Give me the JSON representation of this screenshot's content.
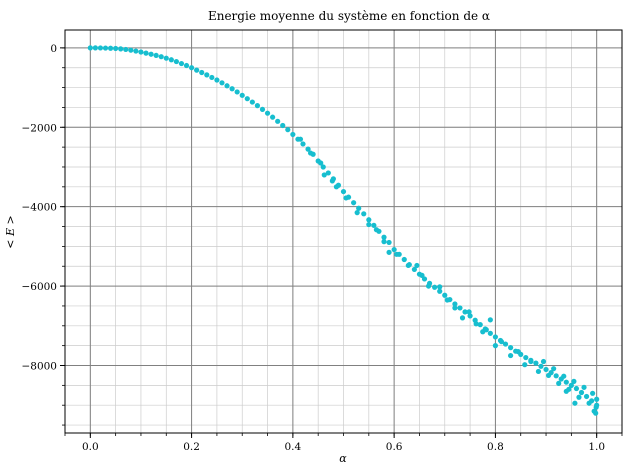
{
  "chart_data": {
    "type": "scatter",
    "title": "Energie moyenne du système en fonction de α",
    "xlabel": "α",
    "ylabel": "< E >",
    "xlim": [
      -0.05,
      1.05
    ],
    "ylim": [
      -9700,
      450
    ],
    "x_ticks": [
      0.0,
      0.2,
      0.4,
      0.6,
      0.8,
      1.0
    ],
    "x_tick_labels": [
      "0.0",
      "0.2",
      "0.4",
      "0.6",
      "0.8",
      "1.0"
    ],
    "y_ticks": [
      0,
      -2000,
      -4000,
      -6000,
      -8000
    ],
    "y_tick_labels": [
      "0",
      "−2000",
      "−4000",
      "−6000",
      "−8000"
    ],
    "grid": "major and minor",
    "marker_color": "#17becf",
    "points": [
      [
        0.0,
        0
      ],
      [
        0.01,
        0
      ],
      [
        0.02,
        -2
      ],
      [
        0.03,
        -5
      ],
      [
        0.04,
        -9
      ],
      [
        0.05,
        -15
      ],
      [
        0.06,
        -25
      ],
      [
        0.07,
        -40
      ],
      [
        0.08,
        -58
      ],
      [
        0.09,
        -80
      ],
      [
        0.1,
        -105
      ],
      [
        0.11,
        -132
      ],
      [
        0.12,
        -160
      ],
      [
        0.13,
        -190
      ],
      [
        0.14,
        -222
      ],
      [
        0.15,
        -260
      ],
      [
        0.16,
        -300
      ],
      [
        0.17,
        -345
      ],
      [
        0.18,
        -395
      ],
      [
        0.19,
        -445
      ],
      [
        0.2,
        -500
      ],
      [
        0.21,
        -560
      ],
      [
        0.22,
        -620
      ],
      [
        0.23,
        -680
      ],
      [
        0.24,
        -745
      ],
      [
        0.25,
        -810
      ],
      [
        0.26,
        -880
      ],
      [
        0.27,
        -955
      ],
      [
        0.28,
        -1030
      ],
      [
        0.29,
        -1110
      ],
      [
        0.3,
        -1195
      ],
      [
        0.31,
        -1280
      ],
      [
        0.32,
        -1365
      ],
      [
        0.33,
        -1455
      ],
      [
        0.34,
        -1550
      ],
      [
        0.35,
        -1645
      ],
      [
        0.36,
        -1745
      ],
      [
        0.37,
        -1850
      ],
      [
        0.38,
        -1955
      ],
      [
        0.39,
        -2060
      ],
      [
        0.4,
        -2180
      ],
      [
        0.41,
        -2300
      ],
      [
        0.42,
        -2420
      ],
      [
        0.43,
        -2550
      ],
      [
        0.44,
        -2680
      ],
      [
        0.45,
        -2850
      ],
      [
        0.46,
        -3000
      ],
      [
        0.47,
        -3150
      ],
      [
        0.48,
        -3300
      ],
      [
        0.49,
        -3460
      ],
      [
        0.5,
        -3620
      ],
      [
        0.51,
        -3760
      ],
      [
        0.52,
        -3900
      ],
      [
        0.53,
        -4040
      ],
      [
        0.54,
        -4180
      ],
      [
        0.55,
        -4330
      ],
      [
        0.56,
        -4470
      ],
      [
        0.57,
        -4620
      ],
      [
        0.58,
        -4770
      ],
      [
        0.59,
        -4900
      ],
      [
        0.6,
        -5080
      ],
      [
        0.61,
        -5200
      ],
      [
        0.62,
        -5330
      ],
      [
        0.63,
        -5460
      ],
      [
        0.64,
        -5580
      ],
      [
        0.65,
        -5700
      ],
      [
        0.66,
        -5820
      ],
      [
        0.67,
        -5930
      ],
      [
        0.68,
        -6030
      ],
      [
        0.69,
        -6130
      ],
      [
        0.7,
        -6230
      ],
      [
        0.71,
        -6340
      ],
      [
        0.72,
        -6450
      ],
      [
        0.73,
        -6550
      ],
      [
        0.74,
        -6650
      ],
      [
        0.75,
        -6750
      ],
      [
        0.76,
        -6860
      ],
      [
        0.77,
        -6970
      ],
      [
        0.78,
        -7080
      ],
      [
        0.79,
        -7190
      ],
      [
        0.8,
        -7280
      ],
      [
        0.81,
        -7370
      ],
      [
        0.82,
        -7460
      ],
      [
        0.83,
        -7550
      ],
      [
        0.84,
        -7640
      ],
      [
        0.85,
        -7720
      ],
      [
        0.86,
        -7800
      ],
      [
        0.87,
        -7870
      ],
      [
        0.88,
        -7940
      ],
      [
        0.89,
        -8020
      ],
      [
        0.9,
        -8100
      ],
      [
        0.91,
        -8180
      ],
      [
        0.92,
        -8260
      ],
      [
        0.93,
        -8340
      ],
      [
        0.94,
        -8420
      ],
      [
        0.95,
        -8500
      ],
      [
        0.96,
        -8580
      ],
      [
        0.97,
        -8680
      ],
      [
        0.98,
        -8780
      ],
      [
        0.99,
        -8890
      ],
      [
        1.0,
        -9000
      ],
      [
        0.415,
        -2300
      ],
      [
        0.435,
        -2650
      ],
      [
        0.455,
        -2900
      ],
      [
        0.462,
        -3200
      ],
      [
        0.478,
        -3350
      ],
      [
        0.486,
        -3500
      ],
      [
        0.505,
        -3780
      ],
      [
        0.527,
        -4150
      ],
      [
        0.55,
        -4450
      ],
      [
        0.565,
        -4580
      ],
      [
        0.58,
        -4880
      ],
      [
        0.59,
        -5150
      ],
      [
        0.605,
        -5200
      ],
      [
        0.628,
        -5480
      ],
      [
        0.645,
        -5480
      ],
      [
        0.655,
        -5730
      ],
      [
        0.668,
        -6000
      ],
      [
        0.69,
        -6020
      ],
      [
        0.705,
        -6350
      ],
      [
        0.72,
        -6550
      ],
      [
        0.735,
        -6800
      ],
      [
        0.748,
        -6650
      ],
      [
        0.762,
        -6950
      ],
      [
        0.775,
        -7150
      ],
      [
        0.782,
        -7100
      ],
      [
        0.79,
        -6850
      ],
      [
        0.8,
        -7500
      ],
      [
        0.812,
        -7400
      ],
      [
        0.83,
        -7750
      ],
      [
        0.845,
        -7650
      ],
      [
        0.858,
        -7980
      ],
      [
        0.87,
        -7900
      ],
      [
        0.885,
        -8150
      ],
      [
        0.895,
        -7900
      ],
      [
        0.905,
        -8250
      ],
      [
        0.915,
        -8080
      ],
      [
        0.925,
        -8450
      ],
      [
        0.935,
        -8270
      ],
      [
        0.945,
        -8600
      ],
      [
        0.955,
        -8400
      ],
      [
        0.965,
        -8800
      ],
      [
        0.975,
        -8550
      ],
      [
        0.985,
        -8950
      ],
      [
        0.992,
        -8700
      ],
      [
        0.995,
        -9150
      ],
      [
        0.998,
        -9200
      ],
      [
        1.0,
        -8850
      ],
      [
        0.999,
        -9050
      ],
      [
        0.94,
        -8650
      ],
      [
        0.957,
        -8950
      ]
    ]
  }
}
